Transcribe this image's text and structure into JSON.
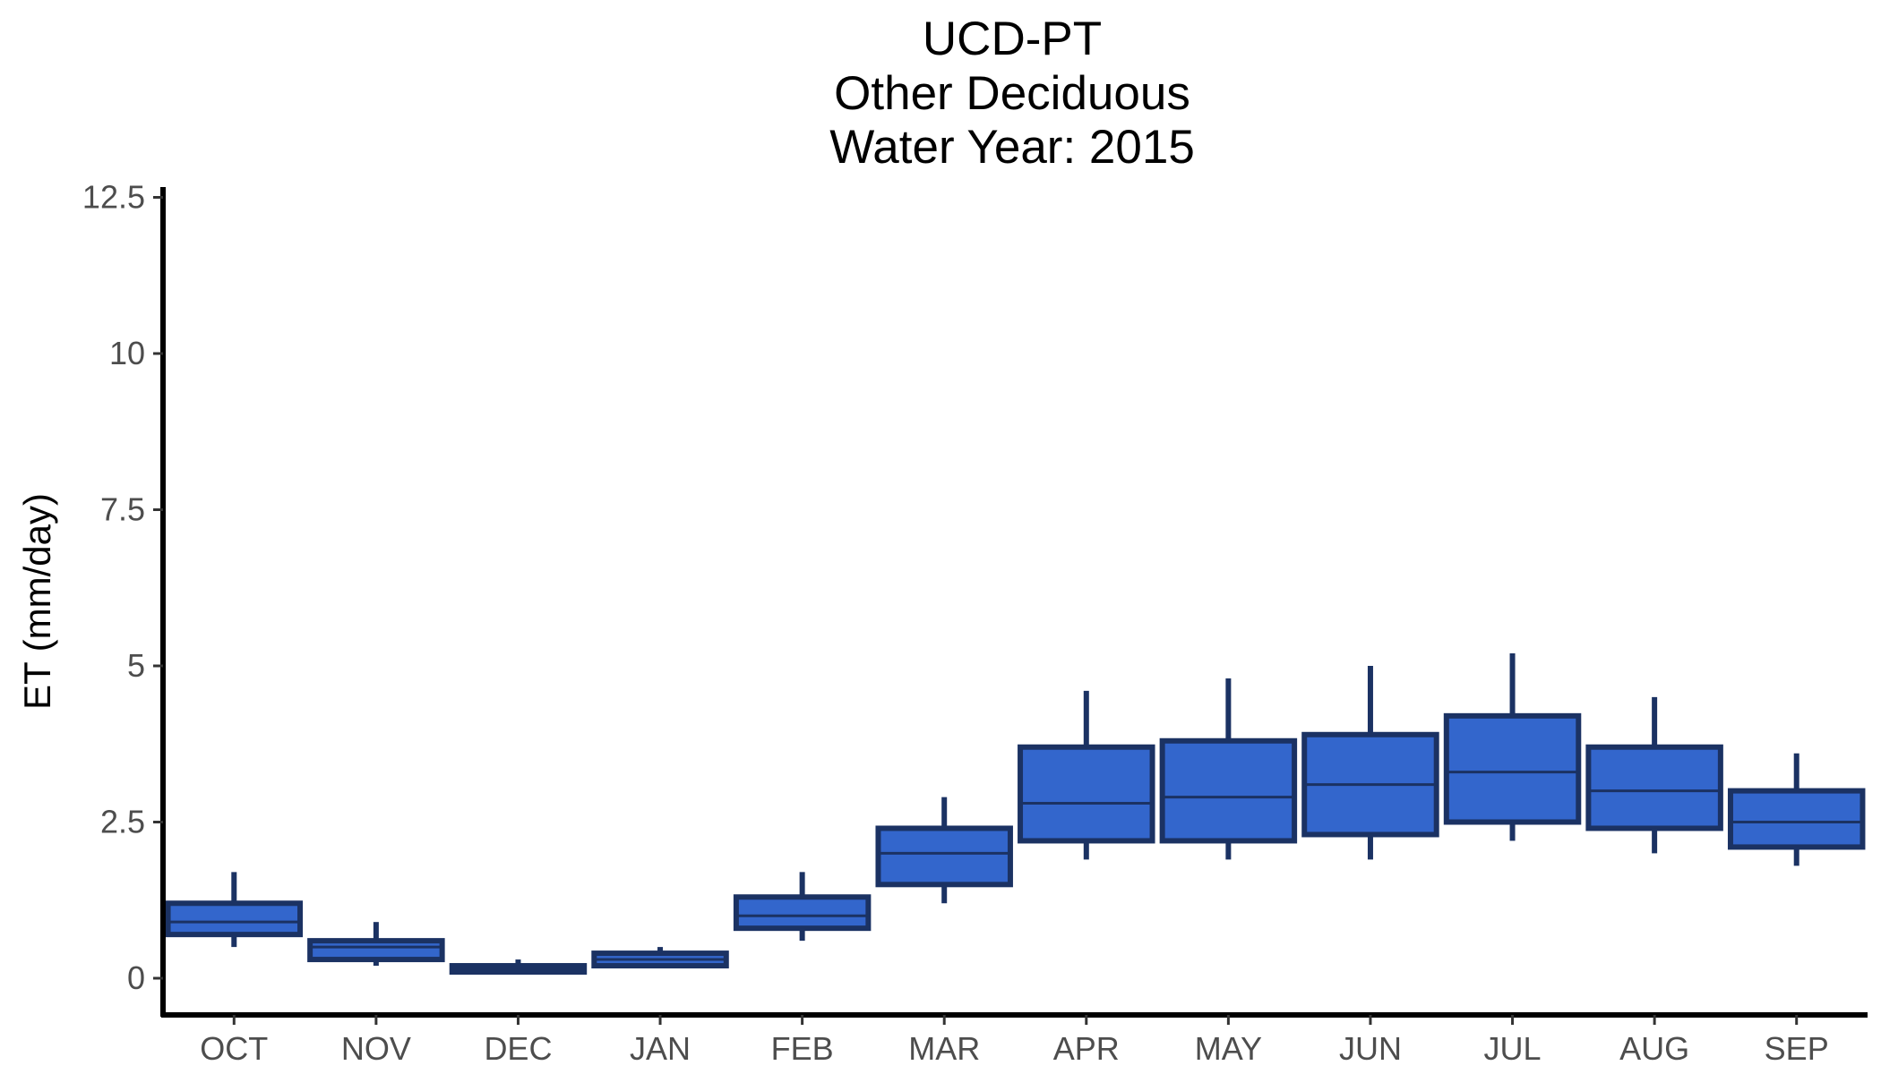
{
  "chart_data": {
    "type": "box",
    "title": [
      "UCD-PT",
      "Other Deciduous",
      "Water Year: 2015"
    ],
    "xlabel": "",
    "ylabel": "ET (mm/day)",
    "ylim": [
      -0.6,
      12.6
    ],
    "yticks": [
      0,
      2.5,
      5,
      7.5,
      10,
      12.5
    ],
    "ytick_labels": [
      "0",
      "2.5",
      "5",
      "7.5",
      "10",
      "12.5"
    ],
    "categories": [
      "OCT",
      "NOV",
      "DEC",
      "JAN",
      "FEB",
      "MAR",
      "APR",
      "MAY",
      "JUN",
      "JUL",
      "AUG",
      "SEP"
    ],
    "boxes": [
      {
        "min": 0.5,
        "q1": 0.7,
        "median": 0.9,
        "q3": 1.2,
        "max": 1.7
      },
      {
        "min": 0.2,
        "q1": 0.3,
        "median": 0.5,
        "q3": 0.6,
        "max": 0.9
      },
      {
        "min": 0.1,
        "q1": 0.1,
        "median": 0.15,
        "q3": 0.2,
        "max": 0.3
      },
      {
        "min": 0.2,
        "q1": 0.2,
        "median": 0.3,
        "q3": 0.4,
        "max": 0.5
      },
      {
        "min": 0.6,
        "q1": 0.8,
        "median": 1.0,
        "q3": 1.3,
        "max": 1.7
      },
      {
        "min": 1.2,
        "q1": 1.5,
        "median": 2.0,
        "q3": 2.4,
        "max": 2.9
      },
      {
        "min": 1.9,
        "q1": 2.2,
        "median": 2.8,
        "q3": 3.7,
        "max": 4.6
      },
      {
        "min": 1.9,
        "q1": 2.2,
        "median": 2.9,
        "q3": 3.8,
        "max": 4.8
      },
      {
        "min": 1.9,
        "q1": 2.3,
        "median": 3.1,
        "q3": 3.9,
        "max": 5.0
      },
      {
        "min": 2.2,
        "q1": 2.5,
        "median": 3.3,
        "q3": 4.2,
        "max": 5.2
      },
      {
        "min": 2.0,
        "q1": 2.4,
        "median": 3.0,
        "q3": 3.7,
        "max": 4.5
      },
      {
        "min": 1.8,
        "q1": 2.1,
        "median": 2.5,
        "q3": 3.0,
        "max": 3.6
      }
    ],
    "fill_color": "#3366cc",
    "stroke_color": "#1b3263",
    "grid": false,
    "legend": "none"
  }
}
